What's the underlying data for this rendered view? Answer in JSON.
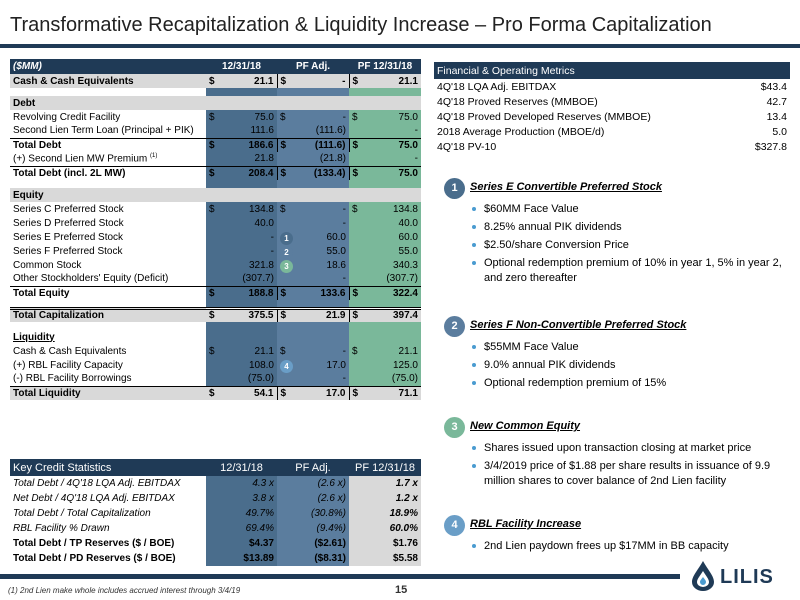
{
  "title": "Transformative Recapitalization & Liquidity Increase – Pro Forma Capitalization",
  "cap_table": {
    "headers": [
      "($MM)",
      "12/31/18",
      "PF Adj.",
      "PF 12/31/18"
    ],
    "rows": {
      "cash": {
        "label": "Cash & Cash Equivalents",
        "v1": "21.1",
        "v2": "-",
        "v3": "21.1"
      },
      "debt_heading": "Debt",
      "rcf": {
        "label": "Revolving Credit Facility",
        "v1": "75.0",
        "v2": "-",
        "v3": "75.0"
      },
      "second_lien": {
        "label": "Second Lien Term Loan (Principal + PIK)",
        "v1": "111.6",
        "v2": "(111.6)",
        "v3": "-"
      },
      "total_debt": {
        "label": "Total Debt",
        "v1": "186.6",
        "v2": "(111.6)",
        "v3": "75.0"
      },
      "mw_premium": {
        "label": "(+) Second Lien MW Premium",
        "sup": "(1)",
        "v1": "21.8",
        "v2": "(21.8)",
        "v3": "-"
      },
      "total_debt_2l": {
        "label": "Total Debt (incl. 2L MW)",
        "v1": "208.4",
        "v2": "(133.4)",
        "v3": "75.0"
      },
      "equity_heading": "Equity",
      "series_c": {
        "label": "Series C Preferred Stock",
        "v1": "134.8",
        "v2": "-",
        "v3": "134.8"
      },
      "series_d": {
        "label": "Series D Preferred Stock",
        "v1": "40.0",
        "v2": "-",
        "v3": "40.0"
      },
      "series_e": {
        "label": "Series E Preferred Stock",
        "v1": "-",
        "marker": "1",
        "v2": "60.0",
        "v3": "60.0"
      },
      "series_f": {
        "label": "Series F Preferred Stock",
        "v1": "-",
        "marker": "2",
        "v2": "55.0",
        "v3": "55.0"
      },
      "common": {
        "label": "Common Stock",
        "v1": "321.8",
        "marker": "3",
        "v2": "18.6",
        "v3": "340.3"
      },
      "other_eq": {
        "label": "Other Stockholders' Equity (Deficit)",
        "v1": "(307.7)",
        "v2": "-",
        "v3": "(307.7)"
      },
      "total_equity": {
        "label": "Total Equity",
        "v1": "188.8",
        "v2": "133.6",
        "v3": "322.4"
      },
      "total_cap": {
        "label": "Total Capitalization",
        "v1": "375.5",
        "v2": "21.9",
        "v3": "397.4"
      },
      "liq_heading": "Liquidity",
      "liq_cash": {
        "label": "Cash & Cash Equivalents",
        "v1": "21.1",
        "v2": "-",
        "v3": "21.1"
      },
      "rbl_cap": {
        "label": "(+) RBL Facility Capacity",
        "v1": "108.0",
        "marker": "4",
        "v2": "17.0",
        "v3": "125.0"
      },
      "rbl_borrow": {
        "label": "(-) RBL Facility Borrowings",
        "v1": "(75.0)",
        "v2": "-",
        "v3": "(75.0)"
      },
      "total_liq": {
        "label": "Total Liquidity",
        "v1": "54.1",
        "v2": "17.0",
        "v3": "71.1"
      }
    },
    "dollar": "$"
  },
  "key_stats": {
    "headers": [
      "Key Credit Statistics",
      "12/31/18",
      "PF Adj.",
      "PF 12/31/18"
    ],
    "rows": [
      {
        "label": "Total Debt / 4Q'18 LQA Adj. EBITDAX",
        "v1": "4.3 x",
        "v2": "(2.6 x)",
        "v3": "1.7 x"
      },
      {
        "label": "Net Debt / 4Q'18 LQA Adj. EBITDAX",
        "v1": "3.8 x",
        "v2": "(2.6 x)",
        "v3": "1.2 x"
      },
      {
        "label": "Total Debt / Total Capitalization",
        "v1": "49.7%",
        "v2": "(30.8%)",
        "v3": "18.9%"
      },
      {
        "label": "RBL Facility % Drawn",
        "v1": "69.4%",
        "v2": "(9.4%)",
        "v3": "60.0%"
      },
      {
        "label": "Total Debt / TP Reserves ($ / BOE)",
        "v1": "$4.37",
        "v2": "($2.61)",
        "v3": "$1.76"
      },
      {
        "label": "Total Debt / PD Reserves ($ / BOE)",
        "v1": "$13.89",
        "v2": "($8.31)",
        "v3": "$5.58"
      }
    ]
  },
  "metrics": {
    "header": "Financial & Operating Metrics",
    "rows": [
      {
        "label": "4Q'18 LQA Adj. EBITDAX",
        "value": "$43.4"
      },
      {
        "label": "4Q'18 Proved Reserves (MMBOE)",
        "value": "42.7"
      },
      {
        "label": "4Q'18 Proved Developed Reserves (MMBOE)",
        "value": "13.4"
      },
      {
        "label": "2018 Average Production (MBOE/d)",
        "value": "5.0"
      },
      {
        "label": "4Q'18 PV-10",
        "value": "$327.8"
      }
    ]
  },
  "sections": [
    {
      "num": "1",
      "title": "Series E Convertible Preferred Stock",
      "bullets": [
        "$60MM Face Value",
        "8.25% annual PIK dividends",
        "$2.50/share Conversion Price",
        "Optional redemption premium of 10% in year 1, 5% in year 2, and zero thereafter"
      ]
    },
    {
      "num": "2",
      "title": "Series F Non-Convertible Preferred Stock",
      "bullets": [
        "$55MM Face Value",
        "9.0% annual PIK dividends",
        "Optional redemption premium of 15%"
      ]
    },
    {
      "num": "3",
      "title": "New Common Equity",
      "bullets": [
        "Shares issued upon transaction closing at market price",
        "3/4/2019 price of $1.88 per share results in issuance of 9.9 million shares to cover balance of 2nd Lien facility"
      ]
    },
    {
      "num": "4",
      "title": "RBL Facility Increase",
      "bullets": [
        "2nd Lien paydown frees up $17MM in BB capacity"
      ]
    }
  ],
  "footnote": "(1) 2nd Lien make whole includes accrued interest through 3/4/19",
  "page_number": "15",
  "logo_text": "LILIS",
  "colors": {
    "navy": "#1f3a56",
    "shade": "#d9d9d9",
    "bullet": "#4a9bd0"
  }
}
